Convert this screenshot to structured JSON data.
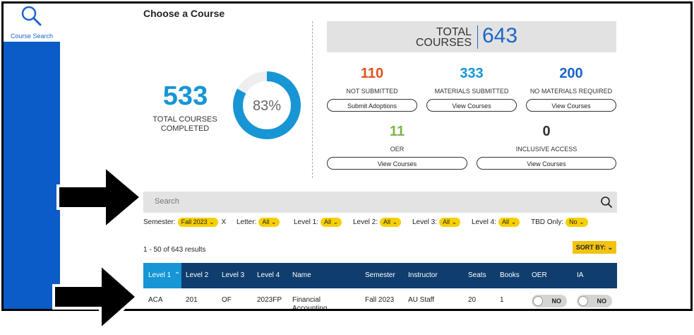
{
  "sidebar": {
    "search_label": "Course Search"
  },
  "page_title": "Choose a Course",
  "completed": {
    "count": "533",
    "label_line1": "TOTAL COURSES",
    "label_line2": "COMPLETED",
    "percent_text": "83%",
    "percent": 83
  },
  "total": {
    "label_line1": "TOTAL",
    "label_line2": "COURSES",
    "count": "643"
  },
  "stats": [
    {
      "value": "110",
      "label": "NOT SUBMITTED",
      "button": "Submit Adoptions",
      "color": "#e0531f"
    },
    {
      "value": "333",
      "label": "MATERIALS SUBMITTED",
      "button": "View Courses",
      "color": "#1795d4"
    },
    {
      "value": "200",
      "label": "NO MATERIALS REQUIRED",
      "button": "View Courses",
      "color": "#1a66c9"
    },
    {
      "value": "11",
      "label": "OER",
      "button": "View Courses",
      "color": "#7ab648"
    },
    {
      "value": "0",
      "label": "INCLUSIVE ACCESS",
      "button": "View Courses",
      "color": "#333333"
    }
  ],
  "search": {
    "placeholder": "Search"
  },
  "filters": {
    "semester_label": "Semester:",
    "semester_value": "Fall 2023",
    "semester_clear": "X",
    "letter_label": "Letter:",
    "letter_value": "All",
    "level1_label": "Level 1:",
    "level1_value": "All",
    "level2_label": "Level 2:",
    "level2_value": "All",
    "level3_label": "Level 3:",
    "level3_value": "All",
    "level4_label": "Level 4:",
    "level4_value": "All",
    "tbd_label": "TBD Only:",
    "tbd_value": "No"
  },
  "results_text": "1 - 50 of 643 results",
  "sort_label": "SORT BY:",
  "table": {
    "headers": [
      "Level 1",
      "Level 2",
      "Level 3",
      "Level 4",
      "Name",
      "Semester",
      "Instructor",
      "Seats",
      "Books",
      "OER",
      "IA"
    ],
    "row": [
      "ACA",
      "201",
      "OF",
      "2023FP",
      "Financial Accounting",
      "Fall 2023",
      "AU Staff",
      "20",
      "1",
      "NO",
      "NO"
    ]
  },
  "icons": {
    "sort_asc": "chevron-up-icon",
    "dropdown": "chevron-down-icon",
    "search": "search-icon"
  }
}
